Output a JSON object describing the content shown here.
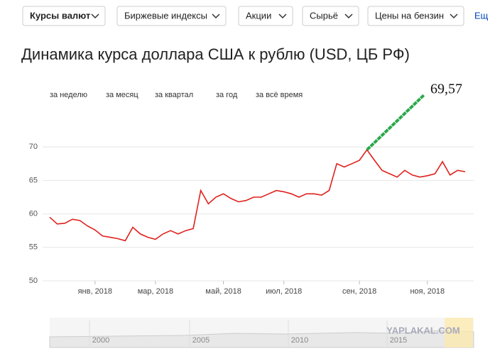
{
  "nav": {
    "tabs": [
      "Курсы валют",
      "Биржевые индексы",
      "Акции",
      "Сырьё",
      "Цены на бензин",
      "Ещ"
    ]
  },
  "periods": [
    "за неделю",
    "за месяц",
    "за квартал",
    "за год",
    "за всё время"
  ],
  "chart_data": {
    "type": "line",
    "title": "Динамика курса доллара США к рублю (USD, ЦБ РФ)",
    "annotation": "69,57",
    "categories": [
      null,
      null,
      null,
      null,
      null,
      null,
      "янв, 2018",
      null,
      null,
      null,
      null,
      null,
      null,
      null,
      "мар, 2018",
      null,
      null,
      null,
      null,
      null,
      null,
      null,
      null,
      "май, 2018",
      null,
      null,
      null,
      null,
      null,
      null,
      null,
      "июл, 2018",
      null,
      null,
      null,
      null,
      null,
      null,
      null,
      null,
      null,
      "сен, 2018",
      null,
      null,
      null,
      null,
      null,
      null,
      null,
      null,
      "ноя, 2018",
      null,
      null,
      null,
      null,
      null
    ],
    "values": [
      59.5,
      58.5,
      58.6,
      59.2,
      59.0,
      58.2,
      57.6,
      56.7,
      56.5,
      56.3,
      56.0,
      58.0,
      57.0,
      56.5,
      56.2,
      57.0,
      57.5,
      57.0,
      57.5,
      57.8,
      63.5,
      61.5,
      62.5,
      63.0,
      62.3,
      61.8,
      62.0,
      62.5,
      62.5,
      63.0,
      63.5,
      63.3,
      63.0,
      62.5,
      63.0,
      63.0,
      62.8,
      63.5,
      67.5,
      67.0,
      67.5,
      68.0,
      69.57,
      68.0,
      66.5,
      66.0,
      65.5,
      66.5,
      65.8,
      65.5,
      65.7,
      66.0,
      67.8,
      65.8,
      66.5,
      66.3
    ],
    "color": "#e0201c",
    "ylim": [
      50,
      75
    ],
    "yticks": [
      50,
      55,
      60,
      65,
      70
    ],
    "grid": true
  },
  "navigator": {
    "labels": [
      "2000",
      "2005",
      "2010",
      "2015"
    ]
  },
  "watermark": "YAPLAKAL.COM"
}
